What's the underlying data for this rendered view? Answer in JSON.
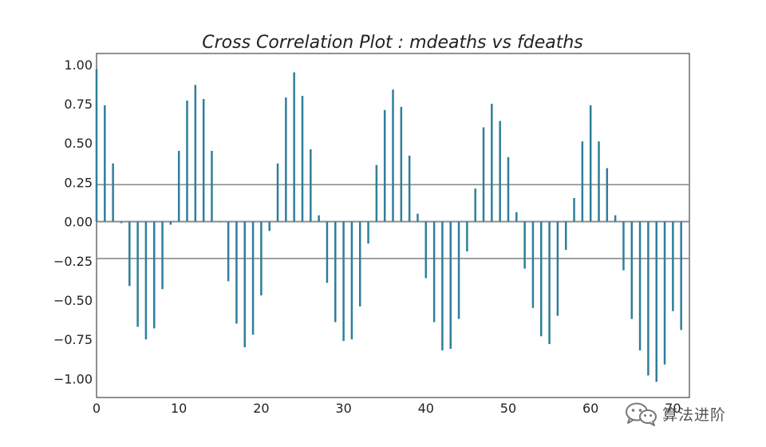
{
  "chart_data": {
    "type": "bar",
    "title": "Cross Correlation Plot : mdeaths vs fdeaths",
    "xlabel": "",
    "ylabel": "",
    "xlim": [
      0,
      72
    ],
    "ylim": [
      -1.12,
      1.07
    ],
    "xticks": [
      0,
      10,
      20,
      30,
      40,
      50,
      60,
      70
    ],
    "xtick_labels": [
      "0",
      "10",
      "20",
      "30",
      "40",
      "50",
      "60",
      "70"
    ],
    "yticks": [
      1.0,
      0.75,
      0.5,
      0.25,
      0.0,
      -0.25,
      -0.5,
      -0.75,
      -1.0
    ],
    "ytick_labels": [
      "1.00",
      "0.75",
      "0.50",
      "0.25",
      "0.00",
      "−0.25",
      "−0.50",
      "−0.75",
      "−1.00"
    ],
    "confidence_bands": [
      0.235,
      -0.235
    ],
    "zero_line": 0,
    "bar_color": "#2e7f9a",
    "line_color": "#8c8c8c",
    "lags": [
      0,
      1,
      2,
      3,
      4,
      5,
      6,
      7,
      8,
      9,
      10,
      11,
      12,
      13,
      14,
      15,
      16,
      17,
      18,
      19,
      20,
      21,
      22,
      23,
      24,
      25,
      26,
      27,
      28,
      29,
      30,
      31,
      32,
      33,
      34,
      35,
      36,
      37,
      38,
      39,
      40,
      41,
      42,
      43,
      44,
      45,
      46,
      47,
      48,
      49,
      50,
      51,
      52,
      53,
      54,
      55,
      56,
      57,
      58,
      59,
      60,
      61,
      62,
      63,
      64,
      65,
      66,
      67,
      68,
      69,
      70,
      71
    ],
    "values": [
      0.97,
      0.74,
      0.37,
      -0.01,
      -0.41,
      -0.67,
      -0.75,
      -0.68,
      -0.43,
      -0.02,
      0.45,
      0.77,
      0.87,
      0.78,
      0.45,
      0.0,
      -0.38,
      -0.65,
      -0.8,
      -0.72,
      -0.47,
      -0.06,
      0.37,
      0.79,
      0.95,
      0.8,
      0.46,
      0.04,
      -0.39,
      -0.64,
      -0.76,
      -0.75,
      -0.54,
      -0.14,
      0.36,
      0.71,
      0.84,
      0.73,
      0.42,
      0.05,
      -0.36,
      -0.64,
      -0.82,
      -0.81,
      -0.62,
      -0.19,
      0.21,
      0.6,
      0.75,
      0.64,
      0.41,
      0.06,
      -0.3,
      -0.55,
      -0.73,
      -0.78,
      -0.6,
      -0.18,
      0.15,
      0.51,
      0.74,
      0.51,
      0.34,
      0.04,
      -0.31,
      -0.62,
      -0.82,
      -0.98,
      -1.02,
      -0.91,
      -0.57,
      -0.69
    ]
  },
  "watermark": {
    "text": "算法进阶",
    "icon": "wechat-icon"
  }
}
